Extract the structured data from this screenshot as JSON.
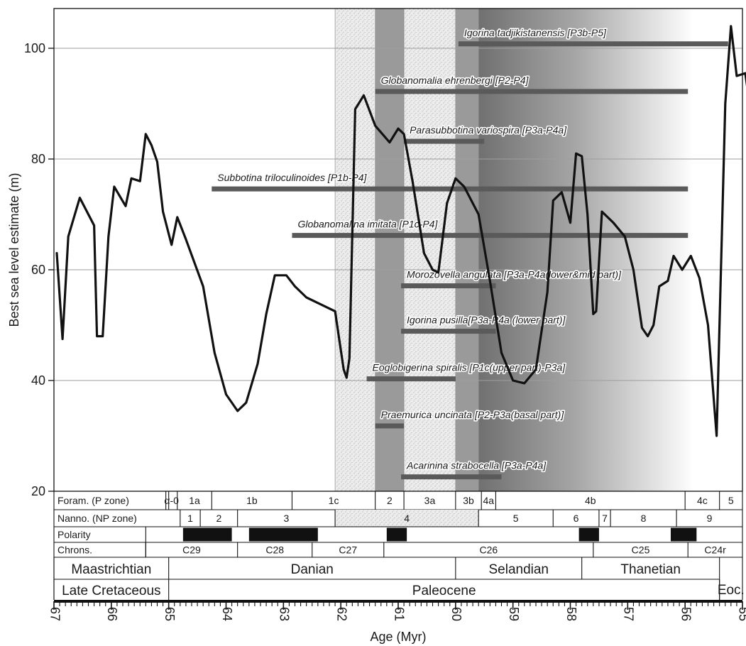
{
  "chart_data": {
    "type": "line",
    "xlabel": "Age (Myr)",
    "ylabel": "Best sea level estimate (m)",
    "xlim": [
      67,
      55
    ],
    "ylim": [
      20,
      106
    ],
    "x_ticks": [
      67,
      66,
      65,
      64,
      63,
      62,
      61,
      60,
      59,
      58,
      57,
      56,
      55
    ],
    "y_ticks": [
      20,
      40,
      60,
      80,
      100
    ],
    "grid": "horizontal",
    "series": [
      {
        "values": [
          [
            66.95,
            63
          ],
          [
            66.85,
            47.5
          ],
          [
            66.75,
            66
          ],
          [
            66.55,
            73
          ],
          [
            66.3,
            68
          ],
          [
            66.25,
            48
          ],
          [
            66.15,
            48
          ],
          [
            66.05,
            66
          ],
          [
            65.95,
            75
          ],
          [
            65.75,
            71.5
          ],
          [
            65.65,
            76.5
          ],
          [
            65.5,
            76
          ],
          [
            65.4,
            84.5
          ],
          [
            65.3,
            82.5
          ],
          [
            65.2,
            79.5
          ],
          [
            65.1,
            70.5
          ],
          [
            64.95,
            64.5
          ],
          [
            64.85,
            69.5
          ],
          [
            64.7,
            65.5
          ],
          [
            64.4,
            57
          ],
          [
            64.2,
            45
          ],
          [
            64.0,
            37.5
          ],
          [
            63.8,
            34.5
          ],
          [
            63.65,
            36
          ],
          [
            63.45,
            43
          ],
          [
            63.3,
            52
          ],
          [
            63.15,
            59
          ],
          [
            62.95,
            59
          ],
          [
            62.8,
            57
          ],
          [
            62.6,
            55
          ],
          [
            62.3,
            53.5
          ],
          [
            62.1,
            52.5
          ],
          [
            61.95,
            42
          ],
          [
            61.9,
            40.5
          ],
          [
            61.85,
            44
          ],
          [
            61.75,
            89
          ],
          [
            61.6,
            91.5
          ],
          [
            61.4,
            86
          ],
          [
            61.15,
            83
          ],
          [
            61.0,
            85.5
          ],
          [
            60.9,
            84.5
          ],
          [
            60.75,
            76
          ],
          [
            60.55,
            63
          ],
          [
            60.4,
            60
          ],
          [
            60.3,
            59.5
          ],
          [
            60.15,
            72
          ],
          [
            60.0,
            76.5
          ],
          [
            59.85,
            75
          ],
          [
            59.6,
            70
          ],
          [
            59.4,
            58
          ],
          [
            59.2,
            45
          ],
          [
            59.0,
            40
          ],
          [
            58.8,
            39.5
          ],
          [
            58.6,
            42
          ],
          [
            58.4,
            56
          ],
          [
            58.3,
            72.5
          ],
          [
            58.15,
            74
          ],
          [
            58.0,
            68.5
          ],
          [
            57.9,
            81
          ],
          [
            57.8,
            80.5
          ],
          [
            57.7,
            70
          ],
          [
            57.6,
            52
          ],
          [
            57.55,
            52.5
          ],
          [
            57.45,
            70.5
          ],
          [
            57.25,
            68.5
          ],
          [
            57.05,
            66
          ],
          [
            56.9,
            60
          ],
          [
            56.75,
            49.5
          ],
          [
            56.65,
            48
          ],
          [
            56.55,
            50
          ],
          [
            56.45,
            57
          ],
          [
            56.3,
            58
          ],
          [
            56.2,
            62.5
          ],
          [
            56.05,
            60
          ],
          [
            55.9,
            62.5
          ],
          [
            55.75,
            58.5
          ],
          [
            55.6,
            50
          ],
          [
            55.45,
            30
          ],
          [
            55.3,
            90
          ],
          [
            55.2,
            104
          ],
          [
            55.1,
            95
          ],
          [
            54.95,
            95.5
          ],
          [
            54.85,
            88
          ],
          [
            54.55,
            81.5
          ]
        ]
      }
    ],
    "shaded_intervals": [
      {
        "from": 62.1,
        "to": 61.4,
        "style": "stippled"
      },
      {
        "from": 61.4,
        "to": 60.9,
        "style": "dark"
      },
      {
        "from": 60.9,
        "to": 60.0,
        "style": "stippled"
      },
      {
        "from": 60.0,
        "to": 59.6,
        "style": "dark"
      },
      {
        "from": 59.6,
        "to": 55.85,
        "style": "gradient"
      }
    ],
    "range_bars": [
      {
        "label": "Igorina tadjikistanensis [P3b-P5]",
        "from": 59.95,
        "to": 55.25,
        "y": 100.8
      },
      {
        "label": "Globanomalia ehrenbergi [P2-P4]",
        "from": 61.4,
        "to": 55.95,
        "y": 92.2
      },
      {
        "label": "Parasubbotina variospira [P3a-P4a]",
        "from": 60.9,
        "to": 59.5,
        "y": 83.2
      },
      {
        "label": "Subbotina triloculinoides [P1b-P4]",
        "from": 64.25,
        "to": 55.95,
        "y": 74.6
      },
      {
        "label": "Globanomalina imitata [P1c-P4]",
        "from": 62.85,
        "to": 55.95,
        "y": 66.2
      },
      {
        "label": "Morozovella angulata [P3a-P4a(lower&mid part)]",
        "from": 60.95,
        "to": 59.3,
        "y": 57.1
      },
      {
        "label": "Igorina pusilla[P3a-P4a (lower part)]",
        "from": 60.95,
        "to": 59.3,
        "y": 48.9
      },
      {
        "label": "Eoglobigerina spiralis [P1c(upper part)-P3a]",
        "from": 61.55,
        "to": 60.0,
        "y": 40.3
      },
      {
        "label": "Praemurica uncinata [P2-P3a(basal part)]",
        "from": 61.4,
        "to": 60.9,
        "y": 31.8
      },
      {
        "label": "Acarinina strabocella [P3a-P4a]",
        "from": 60.95,
        "to": 59.2,
        "y": 22.6
      }
    ],
    "strat_rows": [
      {
        "label": "Foram. (P zone)",
        "zones": [
          {
            "name": "",
            "from": 65.0,
            "to": 65.05
          },
          {
            "name": "α-0",
            "from": 65.05,
            "to": 64.85
          },
          {
            "name": "1a",
            "from": 64.85,
            "to": 64.25
          },
          {
            "name": "1b",
            "from": 64.25,
            "to": 62.85
          },
          {
            "name": "1c",
            "from": 62.85,
            "to": 61.4
          },
          {
            "name": "2",
            "from": 61.4,
            "to": 60.9
          },
          {
            "name": "3a",
            "from": 60.9,
            "to": 60.0
          },
          {
            "name": "3b",
            "from": 60.0,
            "to": 59.55
          },
          {
            "name": "4a",
            "from": 59.55,
            "to": 59.3
          },
          {
            "name": "4b",
            "from": 59.3,
            "to": 56.0
          },
          {
            "name": "4c",
            "from": 56.0,
            "to": 55.4
          },
          {
            "name": "5",
            "from": 55.4,
            "to": 55.0
          }
        ]
      },
      {
        "label": "Nanno. (NP zone)",
        "zones": [
          {
            "name": "1",
            "from": 64.8,
            "to": 64.45
          },
          {
            "name": "2",
            "from": 64.45,
            "to": 63.8
          },
          {
            "name": "3",
            "from": 63.8,
            "to": 62.1
          },
          {
            "name": "4",
            "from": 62.1,
            "to": 59.6,
            "stippled": true
          },
          {
            "name": "5",
            "from": 59.6,
            "to": 58.3
          },
          {
            "name": "6",
            "from": 58.3,
            "to": 57.5
          },
          {
            "name": "7",
            "from": 57.5,
            "to": 57.3
          },
          {
            "name": "8",
            "from": 57.3,
            "to": 56.15
          },
          {
            "name": "9",
            "from": 56.15,
            "to": 55.0
          }
        ]
      },
      {
        "label": "Polarity",
        "normal": [
          [
            64.75,
            63.9
          ],
          [
            63.6,
            62.4
          ],
          [
            61.2,
            60.85
          ],
          [
            57.85,
            57.5
          ],
          [
            56.25,
            55.8
          ]
        ]
      },
      {
        "label": "Chrons.",
        "zones": [
          {
            "name": "C29",
            "from": 65.4,
            "to": 63.8
          },
          {
            "name": "C28",
            "from": 63.8,
            "to": 62.5
          },
          {
            "name": "C27",
            "from": 62.5,
            "to": 61.25
          },
          {
            "name": "C26",
            "from": 61.25,
            "to": 57.6
          },
          {
            "name": "C25",
            "from": 57.6,
            "to": 55.95
          },
          {
            "name": "C24r",
            "from": 55.95,
            "to": 55.0
          }
        ]
      }
    ],
    "stages": [
      {
        "name": "Maastrichtian",
        "from": 67.0,
        "to": 65.0
      },
      {
        "name": "Danian",
        "from": 65.0,
        "to": 60.0
      },
      {
        "name": "Selandian",
        "from": 60.0,
        "to": 57.8
      },
      {
        "name": "Thanetian",
        "from": 57.8,
        "to": 55.4
      }
    ],
    "epochs": [
      {
        "name": "Late Cretaceous",
        "from": 67.0,
        "to": 65.0
      },
      {
        "name": "Paleocene",
        "from": 65.0,
        "to": 55.4
      },
      {
        "name": "Eoc.",
        "from": 55.4,
        "to": 55.0
      }
    ]
  },
  "colors": {
    "line": "#111111",
    "bar": "#5a5a5a",
    "dark_band": "#9a9a9a",
    "stipple_bg": "#ececec",
    "polarity_normal": "#111111",
    "grid": "#9e9e9e"
  }
}
